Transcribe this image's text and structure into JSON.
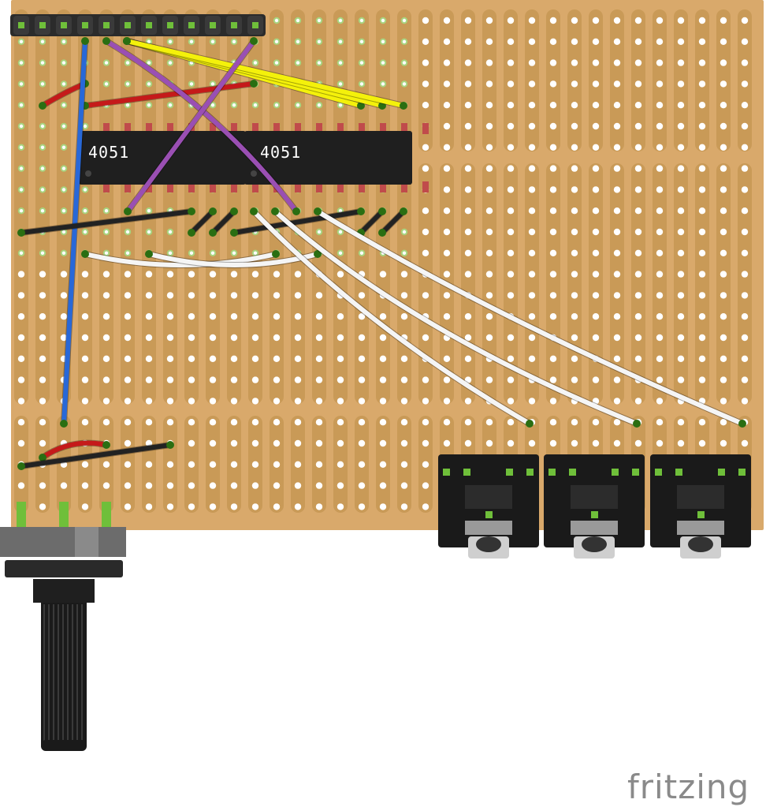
{
  "brand": {
    "logo_text": "fritzing"
  },
  "chips": [
    {
      "label": "4051"
    },
    {
      "label": "4051"
    }
  ],
  "colors": {
    "board": "#d9a96b",
    "strip": "#c99a57",
    "hole": "#ffffff",
    "hole_ring": "#a8d47f",
    "header": "#2b2b2b",
    "header_pin": "#6fbf3a",
    "chip_body": "#1f1f1f",
    "chip_pin": "#c04b4b",
    "wire_yellow": "#f4f10b",
    "wire_red": "#c51a1a",
    "wire_purple": "#9a4fb3",
    "wire_blue": "#2868d8",
    "wire_black": "#222222",
    "wire_white": "#f5f5f5",
    "jack_body": "#1a1a1a",
    "pot_body": "#6c6c6c",
    "logo": "#8a8a8a"
  },
  "components": {
    "header_pins": 12,
    "audio_jacks": 3,
    "potentiometer": 1
  },
  "icons": {
    "logo": "fritzing-logo"
  }
}
